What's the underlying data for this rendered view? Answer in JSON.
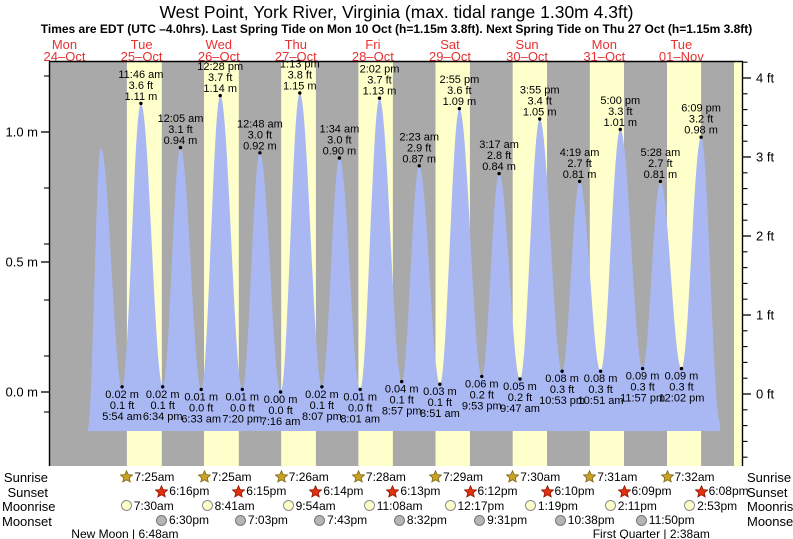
{
  "title": "West Point, York River, Virginia (max. tidal range 1.30m 4.3ft)",
  "subtitle": "Times are EDT (UTC –4.0hrs). Last Spring Tide on Mon 10 Oct (h=1.15m 3.8ft). Next Spring Tide on Thu 27 Oct (h=1.15m 3.8ft)",
  "colors": {
    "night_band": "#a9a9a9",
    "day_band": "#ffffcc",
    "tide_fill": "#a9b8f2",
    "date_red": "#e73131",
    "axis_black": "#000000",
    "sunrise_star_fill": "#c9a227",
    "sunrise_star_edge": "#7a6410",
    "sunset_star_fill": "#e03010",
    "sunset_star_edge": "#8c1500",
    "moonrise_fill": "#ffffcc",
    "moonrise_edge": "#8a8a8a",
    "moonset_fill": "#b5b5b5",
    "moonset_edge": "#777777"
  },
  "units": {
    "m": "m",
    "ft": "ft"
  },
  "y_axis_left": {
    "tick_labels": [
      "1.0 m",
      "0.5 m",
      "0.0 m"
    ]
  },
  "y_axis_right": {
    "tick_labels": [
      "4 ft",
      "3 ft",
      "2 ft",
      "1 ft",
      "0 ft"
    ]
  },
  "astro_row_labels": [
    "Sunrise",
    "Sunset",
    "Moonrise",
    "Moonset"
  ],
  "days": [
    {
      "name": "Mon",
      "date": "24–Oct"
    },
    {
      "name": "Tue",
      "date": "25–Oct",
      "sunrise": "7:25am",
      "sunset": "6:16pm",
      "moonrise": "7:30am",
      "moonset": "6:30pm"
    },
    {
      "name": "Wed",
      "date": "26–Oct",
      "sunrise": "7:25am",
      "sunset": "6:15pm",
      "moonrise": "8:41am",
      "moonset": "7:03pm"
    },
    {
      "name": "Thu",
      "date": "27–Oct",
      "sunrise": "7:26am",
      "sunset": "6:14pm",
      "moonrise": "9:54am",
      "moonset": "7:43pm"
    },
    {
      "name": "Fri",
      "date": "28–Oct",
      "sunrise": "7:28am",
      "sunset": "6:13pm",
      "moonrise": "11:08am",
      "moonset": "8:32pm"
    },
    {
      "name": "Sat",
      "date": "29–Oct",
      "sunrise": "7:29am",
      "sunset": "6:12pm",
      "moonrise": "12:17pm",
      "moonset": "9:31pm"
    },
    {
      "name": "Sun",
      "date": "30–Oct",
      "sunrise": "7:30am",
      "sunset": "6:10pm",
      "moonrise": "1:19pm",
      "moonset": "10:38pm"
    },
    {
      "name": "Mon",
      "date": "31–Oct",
      "sunrise": "7:31am",
      "sunset": "6:09pm",
      "moonrise": "2:11pm",
      "moonset": "11:50pm"
    },
    {
      "name": "Tue",
      "date": "01–Nov",
      "sunrise": "7:32am",
      "sunset": "6:08pm",
      "moonrise": "2:53pm"
    }
  ],
  "moon_phases": [
    {
      "label": "New Moon | 6:48am",
      "day": 1,
      "time": "6:48am"
    },
    {
      "label": "First Quarter | 2:38am",
      "day": 8,
      "time": "2:38am"
    }
  ],
  "chart_data": {
    "type": "area",
    "title": "West Point, York River, Virginia (max. tidal range 1.30m 4.3ft)",
    "ylim_m": [
      -0.29,
      1.27
    ],
    "ylim_ft": [
      -0.9,
      4.7
    ],
    "grid": false,
    "curve_window": {
      "start": {
        "day": 0,
        "hour": 19.2
      },
      "end": {
        "day": 8,
        "hour": 24.05
      }
    },
    "unlabeled_first_high": {
      "day": 0,
      "hour": 23.3,
      "m": 0.94
    },
    "tides": [
      {
        "day": 1,
        "time": "5:54 am",
        "type": "low",
        "m": "0.02",
        "ft": "0.1"
      },
      {
        "day": 1,
        "time": "11:46 am",
        "type": "high",
        "m": "1.11",
        "ft": "3.6"
      },
      {
        "day": 1,
        "time": "6:34 pm",
        "type": "low",
        "m": "0.02",
        "ft": "0.1"
      },
      {
        "day": 2,
        "time": "12:05 am",
        "type": "high",
        "m": "0.94",
        "ft": "3.1"
      },
      {
        "day": 2,
        "time": "6:33 am",
        "type": "low",
        "m": "0.01",
        "ft": "0.0"
      },
      {
        "day": 2,
        "time": "12:28 pm",
        "type": "high",
        "m": "1.14",
        "ft": "3.7"
      },
      {
        "day": 2,
        "time": "7:20 pm",
        "type": "low",
        "m": "0.01",
        "ft": "0.0"
      },
      {
        "day": 3,
        "time": "12:48 am",
        "type": "high",
        "m": "0.92",
        "ft": "3.0"
      },
      {
        "day": 3,
        "time": "7:16 am",
        "type": "low",
        "m": "0.00",
        "ft": "0.0"
      },
      {
        "day": 3,
        "time": "1:13 pm",
        "type": "high",
        "m": "1.15",
        "ft": "3.8"
      },
      {
        "day": 3,
        "time": "8:07 pm",
        "type": "low",
        "m": "0.02",
        "ft": "0.1"
      },
      {
        "day": 4,
        "time": "1:34 am",
        "type": "high",
        "m": "0.90",
        "ft": "3.0"
      },
      {
        "day": 4,
        "time": "8:01 am",
        "type": "low",
        "m": "0.01",
        "ft": "0.0"
      },
      {
        "day": 4,
        "time": "2:02 pm",
        "type": "high",
        "m": "1.13",
        "ft": "3.7"
      },
      {
        "day": 4,
        "time": "8:57 pm",
        "type": "low",
        "m": "0.04",
        "ft": "0.1"
      },
      {
        "day": 5,
        "time": "2:23 am",
        "type": "high",
        "m": "0.87",
        "ft": "2.9"
      },
      {
        "day": 5,
        "time": "8:51 am",
        "type": "low",
        "m": "0.03",
        "ft": "0.1"
      },
      {
        "day": 5,
        "time": "2:55 pm",
        "type": "high",
        "m": "1.09",
        "ft": "3.6"
      },
      {
        "day": 5,
        "time": "9:53 pm",
        "type": "low",
        "m": "0.06",
        "ft": "0.2"
      },
      {
        "day": 6,
        "time": "3:17 am",
        "type": "high",
        "m": "0.84",
        "ft": "2.8"
      },
      {
        "day": 6,
        "time": "9:47 am",
        "type": "low",
        "m": "0.05",
        "ft": "0.2"
      },
      {
        "day": 6,
        "time": "3:55 pm",
        "type": "high",
        "m": "1.05",
        "ft": "3.4"
      },
      {
        "day": 6,
        "time": "10:53 pm",
        "type": "low",
        "m": "0.08",
        "ft": "0.3"
      },
      {
        "day": 7,
        "time": "4:19 am",
        "type": "high",
        "m": "0.81",
        "ft": "2.7"
      },
      {
        "day": 7,
        "time": "10:51 am",
        "type": "low",
        "m": "0.08",
        "ft": "0.3"
      },
      {
        "day": 7,
        "time": "5:00 pm",
        "type": "high",
        "m": "1.01",
        "ft": "3.3"
      },
      {
        "day": 7,
        "time": "11:57 pm",
        "type": "low",
        "m": "0.09",
        "ft": "0.3"
      },
      {
        "day": 8,
        "time": "5:28 am",
        "type": "high",
        "m": "0.81",
        "ft": "2.7"
      },
      {
        "day": 8,
        "time": "12:02 pm",
        "type": "low",
        "m": "0.09",
        "ft": "0.3"
      },
      {
        "day": 8,
        "time": "6:09 pm",
        "type": "high",
        "m": "0.98",
        "ft": "3.2"
      }
    ]
  }
}
